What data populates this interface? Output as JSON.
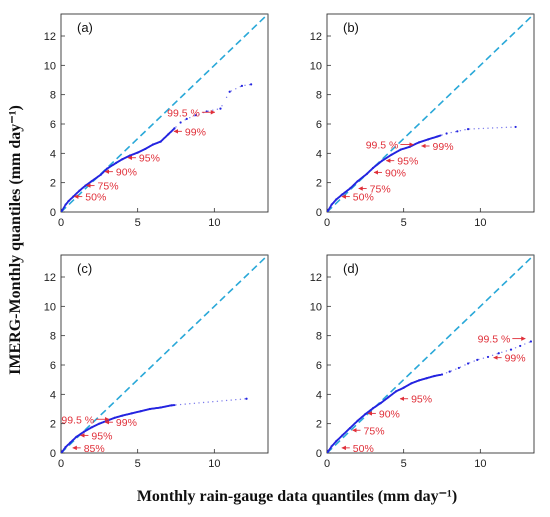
{
  "xlabel": "Monthly rain-gauge data quantiles (mm day⁻¹)",
  "ylabel": "IMERG-Monthly quantiles (mm day⁻¹)",
  "colors": {
    "one_to_one": "#29a8d8",
    "curve": "#2424e0",
    "annotation": "#e0303a"
  },
  "chart_data": [
    {
      "type": "scatter",
      "panel_label": "(a)",
      "xlim": [
        0,
        13.5
      ],
      "ylim": [
        0,
        13.5
      ],
      "xticks": [
        0,
        5,
        10
      ],
      "yticks": [
        0,
        2,
        4,
        6,
        8,
        10,
        12
      ],
      "reference_line": {
        "name": "1:1",
        "style": "dashed",
        "points": [
          [
            0,
            0
          ],
          [
            13.5,
            13.5
          ]
        ]
      },
      "series": [
        {
          "points": [
            [
              0,
              0
            ],
            [
              0.1,
              0.15
            ],
            [
              0.3,
              0.5
            ],
            [
              0.5,
              0.75
            ],
            [
              0.8,
              1.05
            ],
            [
              1.2,
              1.45
            ],
            [
              1.6,
              1.8
            ],
            [
              2.0,
              2.1
            ],
            [
              2.6,
              2.55
            ],
            [
              3.0,
              2.95
            ],
            [
              3.6,
              3.35
            ],
            [
              4.0,
              3.6
            ],
            [
              4.5,
              3.85
            ],
            [
              5.0,
              4.05
            ],
            [
              5.5,
              4.3
            ],
            [
              6.0,
              4.6
            ],
            [
              6.5,
              4.8
            ],
            [
              7.0,
              5.3
            ],
            [
              7.4,
              5.7
            ],
            [
              7.8,
              6.1
            ],
            [
              8.2,
              6.35
            ],
            [
              8.8,
              6.6
            ],
            [
              9.5,
              6.85
            ],
            [
              10.4,
              7.05
            ],
            [
              11.0,
              8.2
            ],
            [
              11.8,
              8.6
            ],
            [
              12.4,
              8.7
            ]
          ]
        }
      ],
      "annotations": [
        {
          "text": "50%",
          "x": 0.8,
          "y": 1.05
        },
        {
          "text": "75%",
          "x": 1.6,
          "y": 1.8
        },
        {
          "text": "90%",
          "x": 2.8,
          "y": 2.75
        },
        {
          "text": "95%",
          "x": 4.3,
          "y": 3.7
        },
        {
          "text": "99%",
          "x": 7.3,
          "y": 5.5
        },
        {
          "text": "99.5 %",
          "x": 10.1,
          "y": 6.8,
          "side": "left"
        }
      ]
    },
    {
      "type": "scatter",
      "panel_label": "(b)",
      "xlim": [
        0,
        13.5
      ],
      "ylim": [
        0,
        13.5
      ],
      "xticks": [
        0,
        5,
        10
      ],
      "yticks": [
        0,
        2,
        4,
        6,
        8,
        10,
        12
      ],
      "reference_line": {
        "name": "1:1",
        "style": "dashed",
        "points": [
          [
            0,
            0
          ],
          [
            13.5,
            13.5
          ]
        ]
      },
      "series": [
        {
          "points": [
            [
              0,
              0
            ],
            [
              0.1,
              0.15
            ],
            [
              0.3,
              0.5
            ],
            [
              0.6,
              0.85
            ],
            [
              1.0,
              1.2
            ],
            [
              1.5,
              1.6
            ],
            [
              2.0,
              2.1
            ],
            [
              2.6,
              2.6
            ],
            [
              3.0,
              3.0
            ],
            [
              3.6,
              3.5
            ],
            [
              4.2,
              3.9
            ],
            [
              4.8,
              4.25
            ],
            [
              5.4,
              4.45
            ],
            [
              6.0,
              4.75
            ],
            [
              6.6,
              4.95
            ],
            [
              7.2,
              5.15
            ],
            [
              7.8,
              5.35
            ],
            [
              8.5,
              5.5
            ],
            [
              9.2,
              5.65
            ],
            [
              12.3,
              5.8
            ]
          ]
        }
      ],
      "annotations": [
        {
          "text": "50%",
          "x": 0.9,
          "y": 1.05
        },
        {
          "text": "75%",
          "x": 2.0,
          "y": 1.6
        },
        {
          "text": "90%",
          "x": 3.0,
          "y": 2.7
        },
        {
          "text": "95%",
          "x": 3.8,
          "y": 3.5
        },
        {
          "text": "99%",
          "x": 6.1,
          "y": 4.5
        },
        {
          "text": "99.5 %",
          "x": 5.7,
          "y": 4.6,
          "side": "left"
        }
      ]
    },
    {
      "type": "scatter",
      "panel_label": "(c)",
      "xlim": [
        0,
        13.5
      ],
      "ylim": [
        0,
        13.5
      ],
      "xticks": [
        0,
        5,
        10
      ],
      "yticks": [
        0,
        2,
        4,
        6,
        8,
        10,
        12
      ],
      "reference_line": {
        "name": "1:1",
        "style": "dashed",
        "points": [
          [
            0,
            0
          ],
          [
            13.5,
            13.5
          ]
        ]
      },
      "series": [
        {
          "points": [
            [
              0,
              0
            ],
            [
              0.1,
              0.12
            ],
            [
              0.3,
              0.4
            ],
            [
              0.6,
              0.7
            ],
            [
              1.0,
              1.1
            ],
            [
              1.5,
              1.45
            ],
            [
              2.0,
              1.75
            ],
            [
              2.5,
              2.0
            ],
            [
              3.0,
              2.2
            ],
            [
              3.5,
              2.4
            ],
            [
              4.0,
              2.55
            ],
            [
              4.6,
              2.7
            ],
            [
              5.2,
              2.85
            ],
            [
              5.8,
              3.0
            ],
            [
              6.5,
              3.1
            ],
            [
              7.2,
              3.25
            ],
            [
              12.1,
              3.7
            ]
          ]
        }
      ],
      "annotations": [
        {
          "text": "85%",
          "x": 0.7,
          "y": 0.35
        },
        {
          "text": "95%",
          "x": 1.2,
          "y": 1.2
        },
        {
          "text": "99%",
          "x": 2.8,
          "y": 2.1
        },
        {
          "text": "99.5 %",
          "x": 3.2,
          "y": 2.3,
          "side": "left"
        }
      ]
    },
    {
      "type": "scatter",
      "panel_label": "(d)",
      "xlim": [
        0,
        13.5
      ],
      "ylim": [
        0,
        13.5
      ],
      "xticks": [
        0,
        5,
        10
      ],
      "yticks": [
        0,
        2,
        4,
        6,
        8,
        10,
        12
      ],
      "reference_line": {
        "name": "1:1",
        "style": "dashed",
        "points": [
          [
            0,
            0
          ],
          [
            13.5,
            13.5
          ]
        ]
      },
      "series": [
        {
          "points": [
            [
              0,
              0
            ],
            [
              0.1,
              0.15
            ],
            [
              0.3,
              0.45
            ],
            [
              0.6,
              0.8
            ],
            [
              1.0,
              1.2
            ],
            [
              1.5,
              1.7
            ],
            [
              2.0,
              2.2
            ],
            [
              2.5,
              2.65
            ],
            [
              3.0,
              3.05
            ],
            [
              3.5,
              3.4
            ],
            [
              4.0,
              3.8
            ],
            [
              4.5,
              4.2
            ],
            [
              5.0,
              4.45
            ],
            [
              5.5,
              4.75
            ],
            [
              6.0,
              4.95
            ],
            [
              6.5,
              5.1
            ],
            [
              7.0,
              5.25
            ],
            [
              7.5,
              5.35
            ],
            [
              8.0,
              5.55
            ],
            [
              8.6,
              5.8
            ],
            [
              9.2,
              6.1
            ],
            [
              9.8,
              6.35
            ],
            [
              10.5,
              6.55
            ],
            [
              11.2,
              6.8
            ],
            [
              12.0,
              7.05
            ],
            [
              12.6,
              7.3
            ],
            [
              13.3,
              7.6
            ]
          ]
        }
      ],
      "annotations": [
        {
          "text": "50%",
          "x": 0.9,
          "y": 0.35
        },
        {
          "text": "75%",
          "x": 1.6,
          "y": 1.55
        },
        {
          "text": "90%",
          "x": 2.6,
          "y": 2.7
        },
        {
          "text": "95%",
          "x": 4.7,
          "y": 3.7
        },
        {
          "text": "99%",
          "x": 10.8,
          "y": 6.5
        },
        {
          "text": "99.5 %",
          "x": 13.0,
          "y": 7.8,
          "side": "left"
        }
      ]
    }
  ]
}
